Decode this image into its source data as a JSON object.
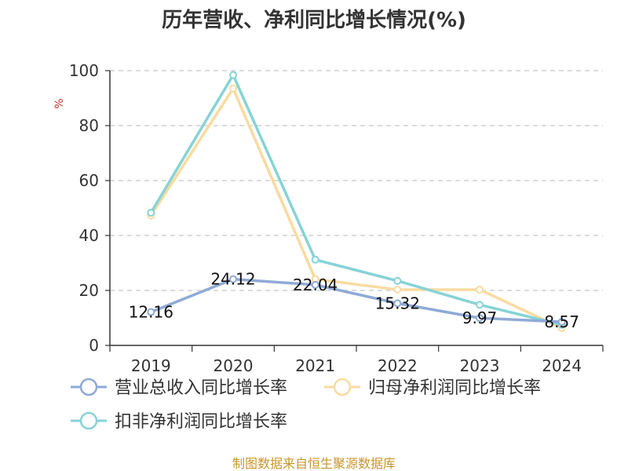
{
  "chart_data": {
    "type": "line",
    "title": "历年营收、净利同比增长情况(%)",
    "ylabel": "%",
    "x": [
      "2019",
      "2020",
      "2021",
      "2022",
      "2023",
      "2024"
    ],
    "ylim": [
      0,
      100
    ],
    "yticks": [
      0,
      20,
      40,
      60,
      80,
      100
    ],
    "grid": true,
    "legend_position": "bottom",
    "series": [
      {
        "name": "营业总收入同比增长率",
        "values": [
          12.16,
          24.12,
          22.04,
          15.32,
          9.97,
          8.57
        ],
        "labels": [
          "12.16",
          "24.12",
          "22.04",
          "15.32",
          "9.97",
          "8.57"
        ],
        "color": "#8faad6"
      },
      {
        "name": "归母净利润同比增长率",
        "values": [
          47.3,
          93.5,
          24.1,
          20.3,
          20.3,
          6.3
        ],
        "color": "#f9dba0"
      },
      {
        "name": "扣非净利润同比增长率",
        "values": [
          48.3,
          98.4,
          31.2,
          23.5,
          14.8,
          7.5
        ],
        "color": "#87d3d6"
      }
    ],
    "source": "制图数据来自恒生聚源数据库"
  }
}
